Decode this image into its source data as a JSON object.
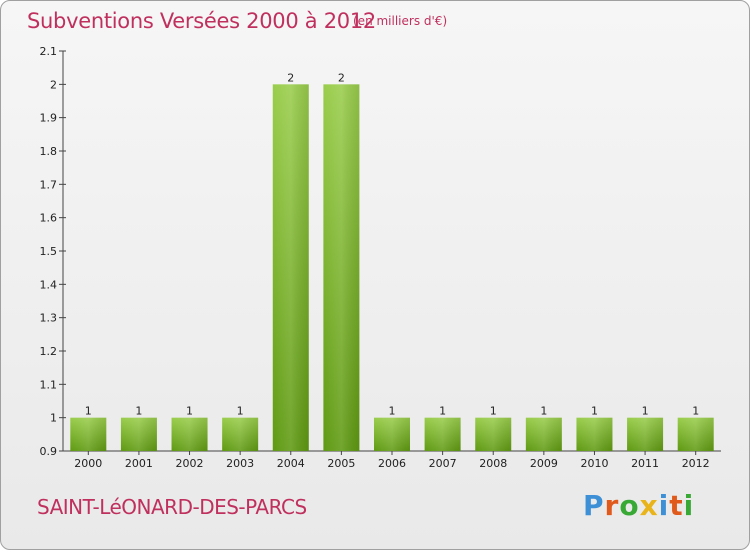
{
  "header": {
    "title": "Subventions Versées 2000 à 2012",
    "unit": "(en milliers d'€)"
  },
  "footer": {
    "commune": "SAINT-LéONARD-DES-PARCS",
    "logo": "Proxiti"
  },
  "colors": {
    "title": "#c0305e",
    "bar_light": "#9acd4c",
    "bar_dark": "#5f9a12",
    "logo_letters": [
      "#3d8fd6",
      "#e05a1c",
      "#39a935",
      "#e8b41a",
      "#3d8fd6",
      "#e05a1c",
      "#39a935"
    ]
  },
  "chart_data": {
    "type": "bar",
    "categories": [
      "2000",
      "2001",
      "2002",
      "2003",
      "2004",
      "2005",
      "2006",
      "2007",
      "2008",
      "2009",
      "2010",
      "2011",
      "2012"
    ],
    "values": [
      1,
      1,
      1,
      1,
      2,
      2,
      1,
      1,
      1,
      1,
      1,
      1,
      1
    ],
    "data_labels": [
      "1",
      "1",
      "1",
      "1",
      "2",
      "2",
      "1",
      "1",
      "1",
      "1",
      "1",
      "1",
      "1"
    ],
    "ylim": [
      0.9,
      2.1
    ],
    "yticks": [
      0.9,
      1,
      1.1,
      1.2,
      1.3,
      1.4,
      1.5,
      1.6,
      1.7,
      1.8,
      1.9,
      2,
      2.1
    ],
    "ytick_labels": [
      "0.9",
      "1",
      "1.1",
      "1.2",
      "1.3",
      "1.4",
      "1.5",
      "1.6",
      "1.7",
      "1.8",
      "1.9",
      "2",
      "2.1"
    ],
    "title": "Subventions Versées 2000 à 2012",
    "xlabel": "",
    "ylabel": "",
    "grid": false,
    "legend": "none"
  }
}
